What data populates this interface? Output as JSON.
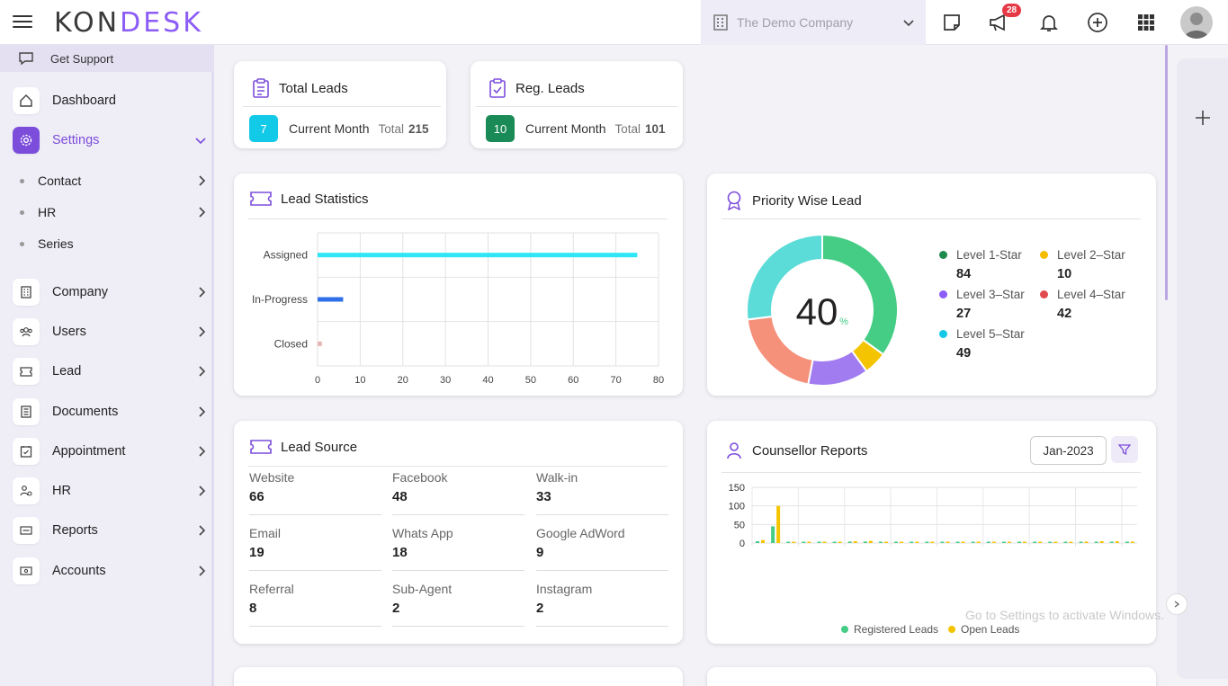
{
  "app": {
    "logo_left": "K",
    "logo_o": "O",
    "logo_n": "N",
    "logo_desk": "DESK"
  },
  "header": {
    "company": "The Demo Company",
    "notification_count": "28"
  },
  "sidebar": {
    "support": "Get Support",
    "items": [
      {
        "label": "Dashboard",
        "icon": "home-icon"
      },
      {
        "label": "Settings",
        "icon": "gear-icon",
        "active": true
      },
      {
        "label": "Company",
        "icon": "building-icon"
      },
      {
        "label": "Users",
        "icon": "users-icon"
      },
      {
        "label": "Lead",
        "icon": "ticket-icon"
      },
      {
        "label": "Documents",
        "icon": "document-icon"
      },
      {
        "label": "Appointment",
        "icon": "calendar-icon"
      },
      {
        "label": "HR",
        "icon": "hr-icon"
      },
      {
        "label": "Reports",
        "icon": "report-icon"
      },
      {
        "label": "Accounts",
        "icon": "accounts-icon"
      }
    ],
    "sub_items": [
      {
        "label": "Contact"
      },
      {
        "label": "HR"
      },
      {
        "label": "Series"
      }
    ]
  },
  "total_leads": {
    "title": "Total Leads",
    "count": "7",
    "period": "Current Month",
    "total_label": "Total",
    "total": "215",
    "color": "#13c9e8"
  },
  "reg_leads": {
    "title": "Reg. Leads",
    "count": "10",
    "period": "Current Month",
    "total_label": "Total",
    "total": "101",
    "color": "#1a8a56"
  },
  "lead_statistics": {
    "title": "Lead Statistics"
  },
  "priority": {
    "title": "Priority Wise Lead",
    "center_value": "40",
    "center_unit": "%",
    "levels": [
      {
        "label": "Level 1-Star",
        "value": "84",
        "color": "#1d8a4f"
      },
      {
        "label": "Level 2–Star",
        "value": "10",
        "color": "#f5bd00"
      },
      {
        "label": "Level 3–Star",
        "value": "27",
        "color": "#8b5cf6"
      },
      {
        "label": "Level 4–Star",
        "value": "42",
        "color": "#e14a50"
      },
      {
        "label": "Level 5–Star",
        "value": "49",
        "color": "#13c9e8"
      }
    ]
  },
  "lead_source": {
    "title": "Lead Source",
    "items": [
      {
        "label": "Website",
        "value": "66"
      },
      {
        "label": "Facebook",
        "value": "48"
      },
      {
        "label": "Walk-in",
        "value": "33"
      },
      {
        "label": "Email",
        "value": "19"
      },
      {
        "label": "Whats App",
        "value": "18"
      },
      {
        "label": "Google AdWord",
        "value": "9"
      },
      {
        "label": "Referral",
        "value": "8"
      },
      {
        "label": "Sub-Agent",
        "value": "2"
      },
      {
        "label": "Instagram",
        "value": "2"
      }
    ]
  },
  "counsellor": {
    "title": "Counsellor Reports",
    "month": "Jan-2023"
  },
  "watermark": "Go to Settings to activate Windows.",
  "chart_data": [
    {
      "type": "bar",
      "orientation": "horizontal",
      "categories": [
        "Assigned",
        "In-Progress",
        "Closed"
      ],
      "values": [
        75,
        6,
        1
      ],
      "colors": [
        "#2ee6f5",
        "#2f6fe8",
        "#e8b4b4"
      ],
      "xlim": [
        0,
        80
      ],
      "xticks": [
        0,
        10,
        20,
        30,
        40,
        50,
        60,
        70,
        80
      ],
      "grid": true
    },
    {
      "type": "pie",
      "donut": true,
      "slices": [
        {
          "name": "green",
          "value": 35,
          "color": "#45cc85"
        },
        {
          "name": "yellow",
          "value": 5,
          "color": "#f5c400"
        },
        {
          "name": "purple",
          "value": 13,
          "color": "#a17cf0"
        },
        {
          "name": "salmon",
          "value": 20,
          "color": "#f5907a"
        },
        {
          "name": "teal",
          "value": 27,
          "color": "#5cdcd8"
        }
      ]
    },
    {
      "type": "bar",
      "ylim": [
        0,
        150
      ],
      "yticks": [
        0,
        50,
        100,
        150
      ],
      "grid": true,
      "series": [
        {
          "name": "Registered Leads",
          "color": "#45cc85",
          "values": [
            5,
            45,
            1,
            1,
            0,
            1,
            4,
            4,
            1,
            1,
            0,
            1,
            2,
            0,
            0,
            0,
            0,
            1,
            0,
            0,
            0,
            1,
            2,
            0,
            2
          ]
        },
        {
          "name": "Open Leads",
          "color": "#f5c400",
          "values": [
            8,
            100,
            3,
            2,
            0,
            3,
            5,
            6,
            2,
            1,
            0,
            2,
            3,
            0,
            0,
            0,
            0,
            2,
            0,
            0,
            0,
            4,
            5,
            5,
            4
          ]
        }
      ]
    }
  ]
}
